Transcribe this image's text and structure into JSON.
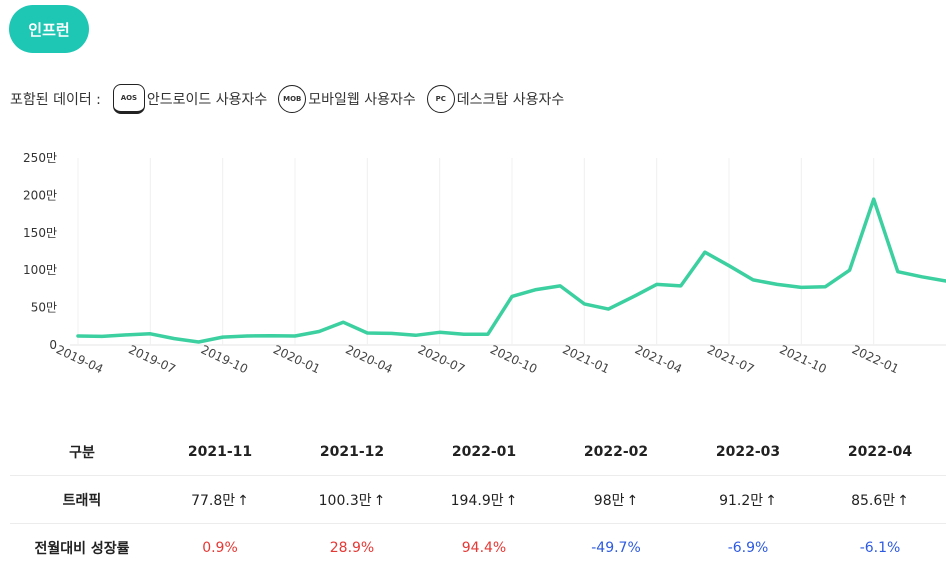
{
  "badge": "인프런",
  "legend": {
    "label": "포함된 데이터 :",
    "items": [
      {
        "icon": "AOS",
        "text": "안드로이드 사용자수"
      },
      {
        "icon": "MOB",
        "text": "모바일웹 사용자수"
      },
      {
        "icon": "PC",
        "text": "데스크탑 사용자수"
      }
    ]
  },
  "chart_data": {
    "type": "line",
    "title": "",
    "xlabel": "",
    "ylabel": "",
    "ylim": [
      0,
      250
    ],
    "y_ticks": [
      "0",
      "50만",
      "100만",
      "150만",
      "200만",
      "250만"
    ],
    "x_ticks": [
      "2019-04",
      "2019-07",
      "2019-10",
      "2020-01",
      "2020-04",
      "2020-07",
      "2020-10",
      "2021-01",
      "2021-04",
      "2021-07",
      "2021-10",
      "2022-01"
    ],
    "line_color": "#3ccfa0",
    "values": [
      12,
      11.5,
      13.5,
      15,
      8.5,
      4,
      10.5,
      12,
      12.5,
      12,
      18,
      30.5,
      16,
      15.5,
      13,
      17,
      14.5,
      14.5,
      65,
      74,
      79,
      55,
      48,
      64,
      81,
      79,
      124,
      106,
      87,
      81,
      77,
      78,
      100,
      194.9,
      98,
      91.2,
      85.6
    ]
  },
  "table": {
    "header": [
      "구분",
      "2021-11",
      "2021-12",
      "2022-01",
      "2022-02",
      "2022-03",
      "2022-04"
    ],
    "traffic_label": "트래픽",
    "traffic": [
      "77.8만",
      "100.3만",
      "194.9만",
      "98만",
      "91.2만",
      "85.6만"
    ],
    "arrow": "↑",
    "growth_label": "전월대비 성장률",
    "growth": [
      "0.9%",
      "28.9%",
      "94.4%",
      "-49.7%",
      "-6.9%",
      "-6.1%"
    ],
    "growth_colors": [
      "#e53935",
      "#e53935",
      "#e53935",
      "#2e5be0",
      "#2e5be0",
      "#2e5be0"
    ]
  }
}
